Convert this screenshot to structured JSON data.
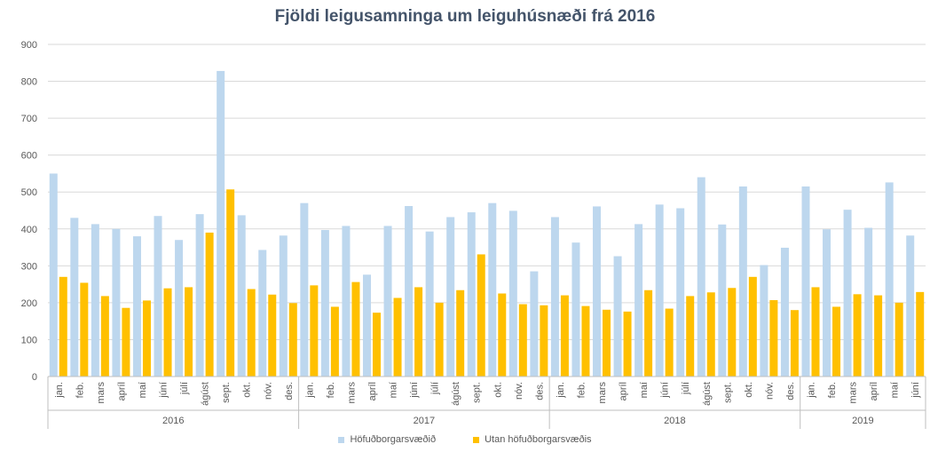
{
  "chart_data": {
    "type": "bar",
    "title": "Fjöldi leigusamninga um leiguhúsnæði frá 2016",
    "ylim": [
      0,
      900
    ],
    "yticks": [
      0,
      100,
      200,
      300,
      400,
      500,
      600,
      700,
      800,
      900
    ],
    "grid": true,
    "legend_position": "bottom",
    "years": [
      {
        "label": "2016",
        "months": 12
      },
      {
        "label": "2017",
        "months": 12
      },
      {
        "label": "2018",
        "months": 12
      },
      {
        "label": "2019",
        "months": 6
      }
    ],
    "categories": [
      "jan.",
      "feb.",
      "mars",
      "apríl",
      "maí",
      "júní",
      "júlí",
      "ágúst",
      "sept.",
      "okt.",
      "nóv.",
      "des.",
      "jan.",
      "feb.",
      "mars",
      "apríl",
      "maí",
      "júní",
      "júlí",
      "ágúst",
      "sept.",
      "okt.",
      "nóv.",
      "des.",
      "jan.",
      "feb.",
      "mars",
      "apríl",
      "maí",
      "júní",
      "júlí",
      "ágúst",
      "sept.",
      "okt.",
      "nóv.",
      "des.",
      "jan.",
      "feb.",
      "mars",
      "apríl",
      "maí",
      "júní"
    ],
    "series": [
      {
        "name": "Höfuðborgarsvæðið",
        "color": "#bdd7ee",
        "values": [
          550,
          430,
          413,
          400,
          380,
          435,
          370,
          440,
          828,
          437,
          343,
          382,
          470,
          397,
          408,
          276,
          408,
          462,
          393,
          432,
          445,
          470,
          449,
          285,
          432,
          363,
          461,
          326,
          413,
          466,
          456,
          540,
          412,
          515,
          302,
          349,
          515,
          399,
          452,
          403,
          526,
          382
        ]
      },
      {
        "name": "Utan höfuðborgarsvæðis",
        "color": "#ffc000",
        "values": [
          270,
          254,
          218,
          186,
          206,
          239,
          242,
          390,
          507,
          237,
          222,
          199,
          247,
          189,
          256,
          173,
          213,
          242,
          200,
          234,
          331,
          225,
          196,
          193,
          220,
          191,
          181,
          176,
          234,
          184,
          218,
          228,
          240,
          270,
          207,
          180,
          242,
          189,
          223,
          220,
          200,
          229
        ]
      }
    ]
  }
}
